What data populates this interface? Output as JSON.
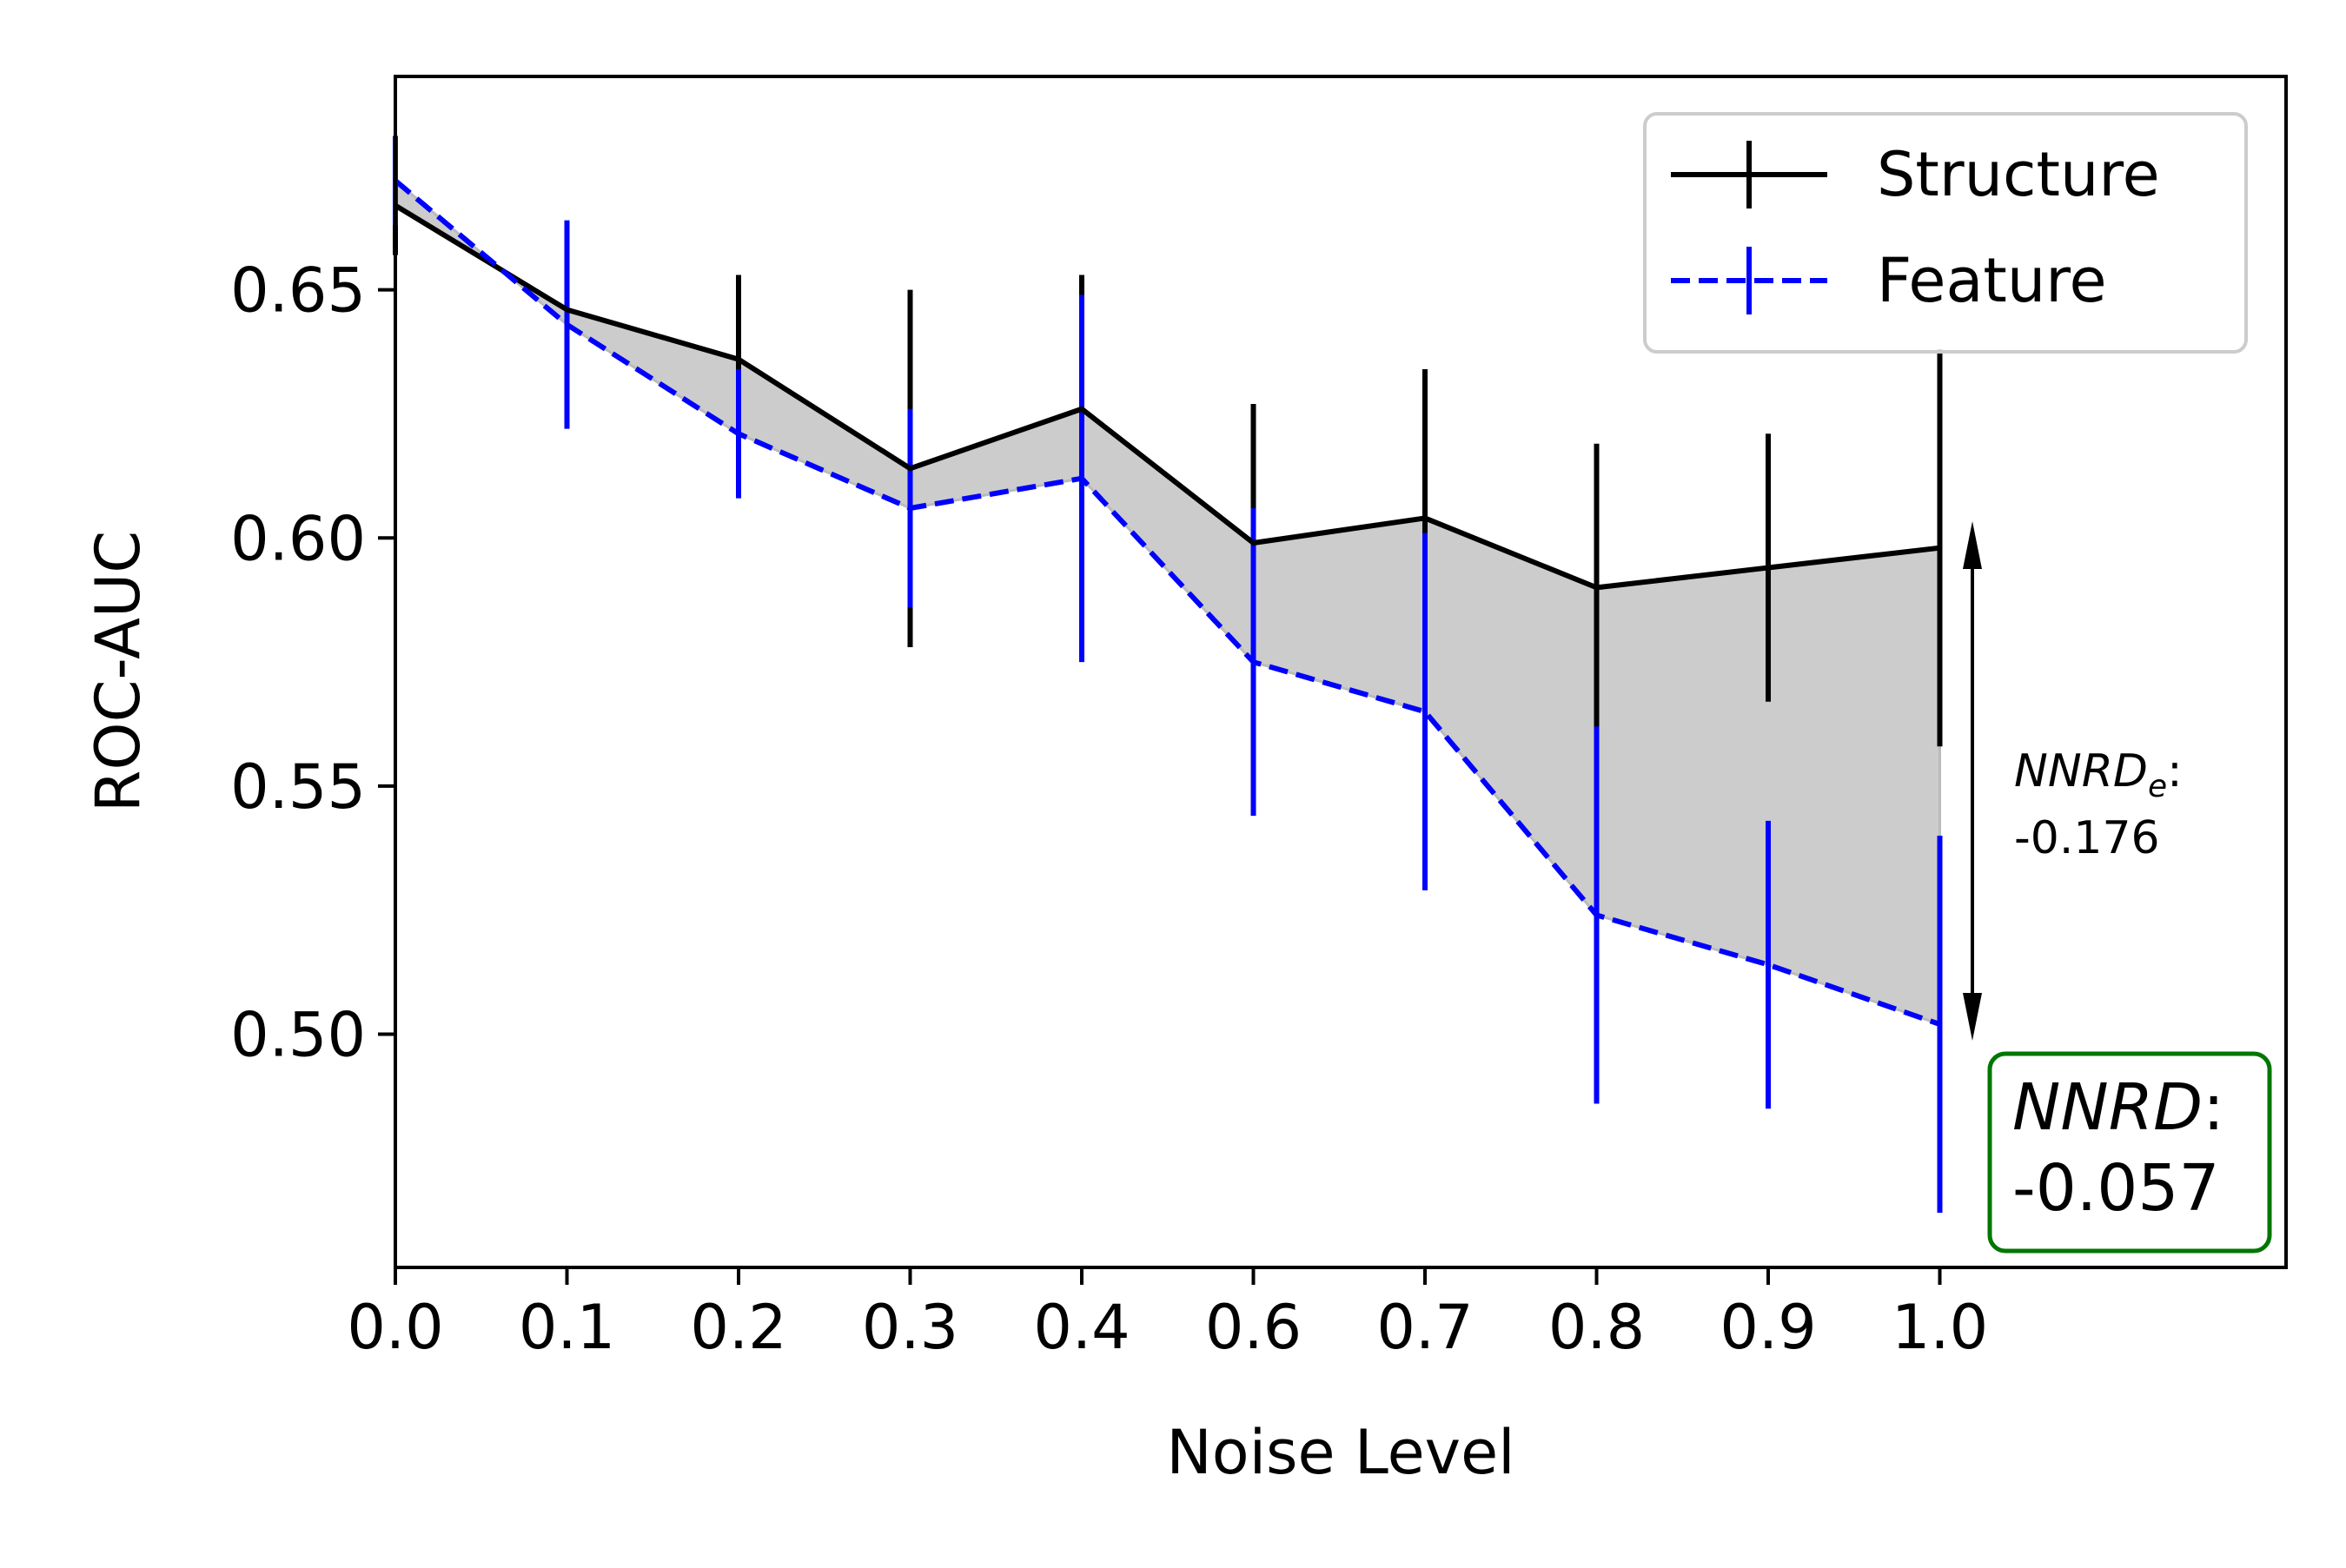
{
  "chart_data": {
    "type": "line",
    "xlabel": "Noise Level",
    "ylabel": "ROC-AUC",
    "categories": [
      "0.0",
      "0.1",
      "0.2",
      "0.3",
      "0.4",
      "0.6",
      "0.7",
      "0.8",
      "0.9",
      "1.0"
    ],
    "ylim": [
      0.453,
      0.693
    ],
    "yticks": [
      "0.50",
      "0.55",
      "0.60",
      "0.65"
    ],
    "ytick_values": [
      0.5,
      0.55,
      0.6,
      0.65
    ],
    "grid": false,
    "legend_position": "top-right",
    "fill_between": true,
    "series": [
      {
        "name": "Structure",
        "color": "#000000",
        "linestyle": "solid",
        "values": [
          0.667,
          0.646,
          0.636,
          0.614,
          0.626,
          0.599,
          0.604,
          0.59,
          0.594,
          0.598
        ],
        "errors": [
          0.01,
          0.01,
          0.017,
          0.036,
          0.027,
          0.028,
          0.03,
          0.029,
          0.027,
          0.04
        ]
      },
      {
        "name": "Feature",
        "color": "#0000ff",
        "linestyle": "dashed",
        "values": [
          0.672,
          0.643,
          0.621,
          0.606,
          0.612,
          0.575,
          0.565,
          0.524,
          0.514,
          0.502
        ],
        "errors": [
          0.009,
          0.021,
          0.013,
          0.02,
          0.037,
          0.031,
          0.036,
          0.038,
          0.029,
          0.038
        ]
      }
    ],
    "annotations": {
      "nnrd_e_label": "NNRD",
      "nnrd_e_sub": "e",
      "nnrd_e_value": "-0.176",
      "nnrd_label": "NNRD",
      "nnrd_value": "-0.057",
      "nnrd_box_color": "#007700",
      "colon": ":"
    }
  }
}
